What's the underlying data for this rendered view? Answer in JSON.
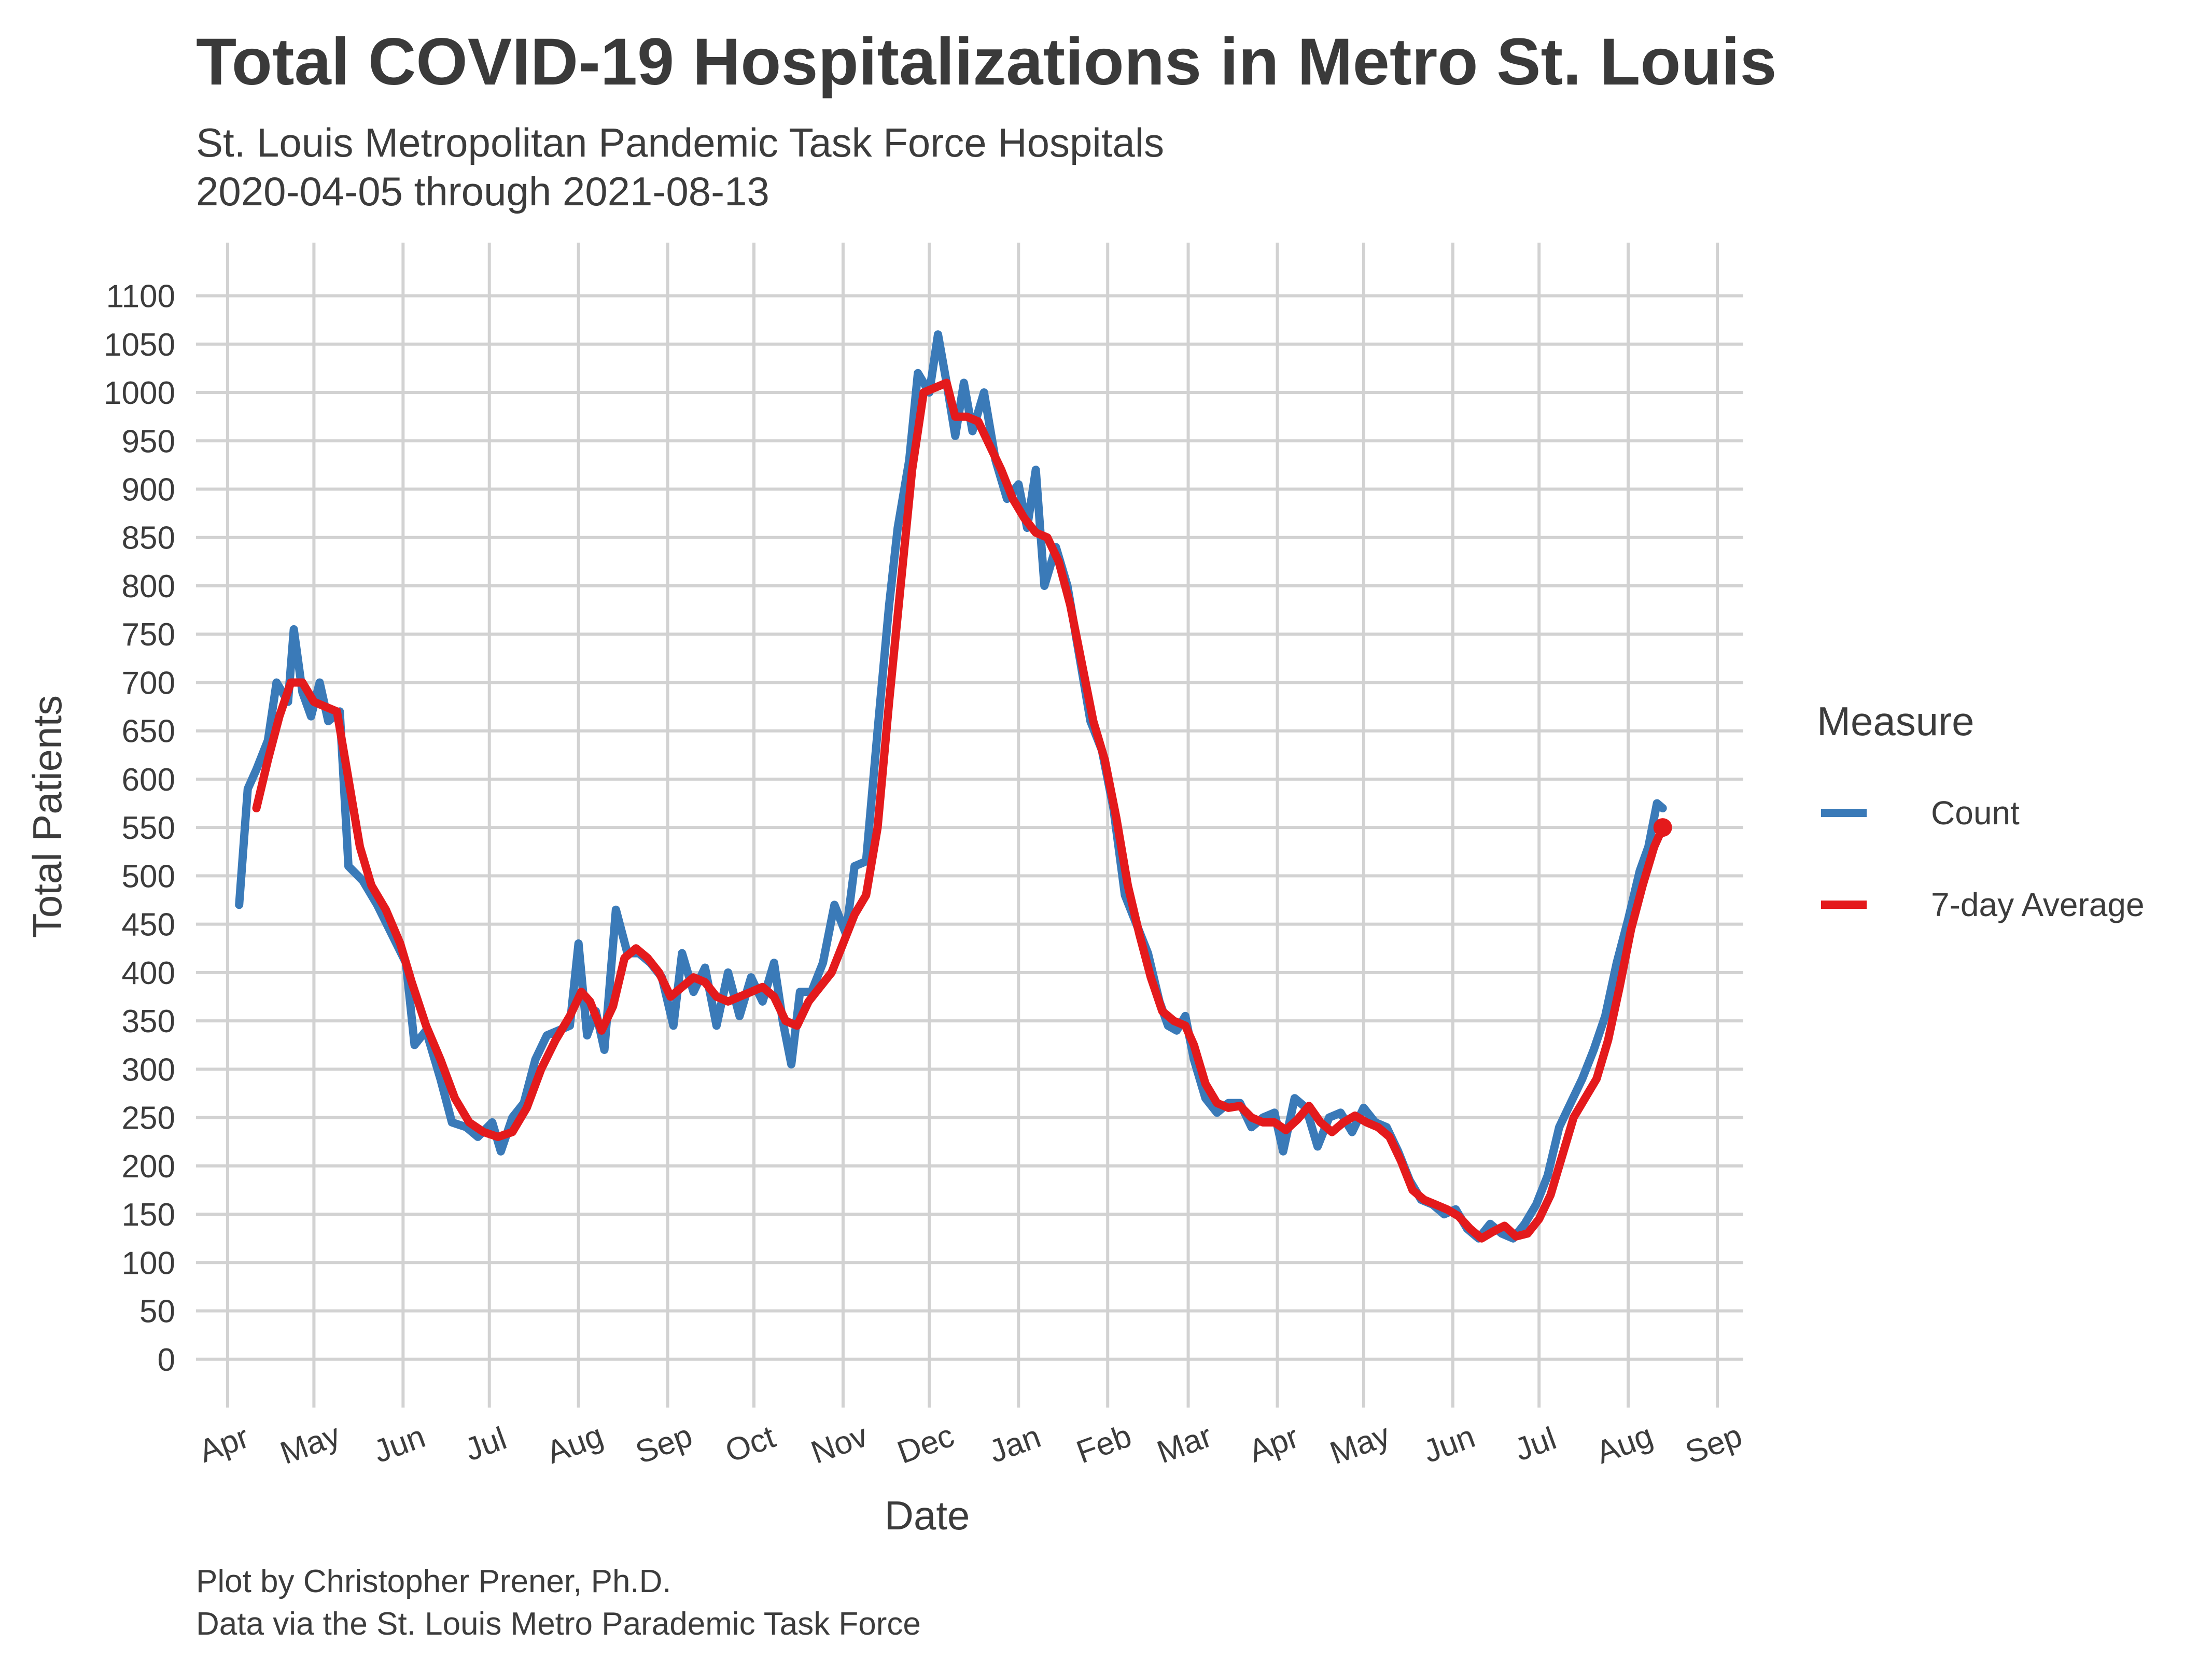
{
  "title": "Total COVID-19 Hospitalizations in Metro St. Louis",
  "subtitle": {
    "line1": "St. Louis Metropolitan Pandemic Task Force Hospitals",
    "line2": "2020-04-05 through 2021-08-13"
  },
  "caption": {
    "line1": "Plot by Christopher Prener, Ph.D.",
    "line2": "Data via the St. Louis Metro Parademic Task Force"
  },
  "colors": {
    "count": "#3a7ab8",
    "average": "#e41a1c",
    "grid": "#d2d2d2",
    "text": "#3c3c3c"
  },
  "chart_data": {
    "type": "line",
    "xlabel": "Date",
    "ylabel": "Total Patients",
    "xlim": [
      "2020-03-21",
      "2021-09-10"
    ],
    "ylim": [
      -50,
      1155
    ],
    "x_ticks": [
      {
        "date": "2020-04-01",
        "label": "Apr"
      },
      {
        "date": "2020-05-01",
        "label": "May"
      },
      {
        "date": "2020-06-01",
        "label": "Jun"
      },
      {
        "date": "2020-07-01",
        "label": "Jul"
      },
      {
        "date": "2020-08-01",
        "label": "Aug"
      },
      {
        "date": "2020-09-01",
        "label": "Sep"
      },
      {
        "date": "2020-10-01",
        "label": "Oct"
      },
      {
        "date": "2020-11-01",
        "label": "Nov"
      },
      {
        "date": "2020-12-01",
        "label": "Dec"
      },
      {
        "date": "2021-01-01",
        "label": "Jan"
      },
      {
        "date": "2021-02-01",
        "label": "Feb"
      },
      {
        "date": "2021-03-01",
        "label": "Mar"
      },
      {
        "date": "2021-04-01",
        "label": "Apr"
      },
      {
        "date": "2021-05-01",
        "label": "May"
      },
      {
        "date": "2021-06-01",
        "label": "Jun"
      },
      {
        "date": "2021-07-01",
        "label": "Jul"
      },
      {
        "date": "2021-08-01",
        "label": "Aug"
      },
      {
        "date": "2021-09-01",
        "label": "Sep"
      }
    ],
    "y_ticks": [
      0,
      50,
      100,
      150,
      200,
      250,
      300,
      350,
      400,
      450,
      500,
      550,
      600,
      650,
      700,
      750,
      800,
      850,
      900,
      950,
      1000,
      1050,
      1100
    ],
    "grid": true,
    "legend": {
      "title": "Measure",
      "position": "right"
    },
    "series": [
      {
        "name": "Count",
        "color": "#3a7ab8",
        "points": [
          [
            "2020-04-05",
            470
          ],
          [
            "2020-04-08",
            590
          ],
          [
            "2020-04-11",
            610
          ],
          [
            "2020-04-15",
            640
          ],
          [
            "2020-04-18",
            700
          ],
          [
            "2020-04-22",
            680
          ],
          [
            "2020-04-24",
            755
          ],
          [
            "2020-04-27",
            690
          ],
          [
            "2020-04-30",
            665
          ],
          [
            "2020-05-03",
            700
          ],
          [
            "2020-05-06",
            660
          ],
          [
            "2020-05-10",
            670
          ],
          [
            "2020-05-13",
            510
          ],
          [
            "2020-05-18",
            495
          ],
          [
            "2020-05-23",
            470
          ],
          [
            "2020-05-28",
            440
          ],
          [
            "2020-06-02",
            410
          ],
          [
            "2020-06-05",
            325
          ],
          [
            "2020-06-09",
            340
          ],
          [
            "2020-06-14",
            290
          ],
          [
            "2020-06-18",
            245
          ],
          [
            "2020-06-23",
            240
          ],
          [
            "2020-06-27",
            230
          ],
          [
            "2020-07-02",
            245
          ],
          [
            "2020-07-05",
            215
          ],
          [
            "2020-07-09",
            250
          ],
          [
            "2020-07-13",
            265
          ],
          [
            "2020-07-17",
            310
          ],
          [
            "2020-07-21",
            335
          ],
          [
            "2020-07-25",
            340
          ],
          [
            "2020-07-29",
            345
          ],
          [
            "2020-08-01",
            430
          ],
          [
            "2020-08-04",
            335
          ],
          [
            "2020-08-07",
            360
          ],
          [
            "2020-08-10",
            320
          ],
          [
            "2020-08-14",
            465
          ],
          [
            "2020-08-18",
            420
          ],
          [
            "2020-08-22",
            420
          ],
          [
            "2020-08-26",
            410
          ],
          [
            "2020-08-30",
            395
          ],
          [
            "2020-09-03",
            345
          ],
          [
            "2020-09-06",
            420
          ],
          [
            "2020-09-10",
            380
          ],
          [
            "2020-09-14",
            405
          ],
          [
            "2020-09-18",
            345
          ],
          [
            "2020-09-22",
            400
          ],
          [
            "2020-09-26",
            355
          ],
          [
            "2020-09-30",
            395
          ],
          [
            "2020-10-04",
            370
          ],
          [
            "2020-10-08",
            410
          ],
          [
            "2020-10-11",
            350
          ],
          [
            "2020-10-14",
            305
          ],
          [
            "2020-10-17",
            380
          ],
          [
            "2020-10-21",
            380
          ],
          [
            "2020-10-25",
            410
          ],
          [
            "2020-10-29",
            470
          ],
          [
            "2020-11-02",
            440
          ],
          [
            "2020-11-05",
            510
          ],
          [
            "2020-11-09",
            515
          ],
          [
            "2020-11-13",
            650
          ],
          [
            "2020-11-17",
            780
          ],
          [
            "2020-11-20",
            860
          ],
          [
            "2020-11-24",
            930
          ],
          [
            "2020-11-27",
            1020
          ],
          [
            "2020-12-01",
            1000
          ],
          [
            "2020-12-04",
            1060
          ],
          [
            "2020-12-07",
            1010
          ],
          [
            "2020-12-10",
            955
          ],
          [
            "2020-12-13",
            1010
          ],
          [
            "2020-12-16",
            960
          ],
          [
            "2020-12-20",
            1000
          ],
          [
            "2020-12-24",
            930
          ],
          [
            "2020-12-28",
            890
          ],
          [
            "2021-01-01",
            905
          ],
          [
            "2021-01-04",
            860
          ],
          [
            "2021-01-07",
            920
          ],
          [
            "2021-01-10",
            800
          ],
          [
            "2021-01-14",
            840
          ],
          [
            "2021-01-18",
            800
          ],
          [
            "2021-01-22",
            730
          ],
          [
            "2021-01-26",
            660
          ],
          [
            "2021-01-30",
            630
          ],
          [
            "2021-02-03",
            570
          ],
          [
            "2021-02-07",
            480
          ],
          [
            "2021-02-11",
            450
          ],
          [
            "2021-02-15",
            420
          ],
          [
            "2021-02-19",
            370
          ],
          [
            "2021-02-22",
            345
          ],
          [
            "2021-02-25",
            340
          ],
          [
            "2021-02-28",
            355
          ],
          [
            "2021-03-03",
            310
          ],
          [
            "2021-03-07",
            270
          ],
          [
            "2021-03-11",
            255
          ],
          [
            "2021-03-15",
            265
          ],
          [
            "2021-03-19",
            265
          ],
          [
            "2021-03-23",
            240
          ],
          [
            "2021-03-27",
            250
          ],
          [
            "2021-03-31",
            255
          ],
          [
            "2021-04-03",
            215
          ],
          [
            "2021-04-07",
            270
          ],
          [
            "2021-04-11",
            260
          ],
          [
            "2021-04-15",
            220
          ],
          [
            "2021-04-19",
            250
          ],
          [
            "2021-04-23",
            255
          ],
          [
            "2021-04-27",
            235
          ],
          [
            "2021-05-01",
            260
          ],
          [
            "2021-05-05",
            245
          ],
          [
            "2021-05-09",
            240
          ],
          [
            "2021-05-13",
            215
          ],
          [
            "2021-05-17",
            185
          ],
          [
            "2021-05-21",
            165
          ],
          [
            "2021-05-25",
            160
          ],
          [
            "2021-05-29",
            150
          ],
          [
            "2021-06-02",
            155
          ],
          [
            "2021-06-06",
            135
          ],
          [
            "2021-06-10",
            125
          ],
          [
            "2021-06-14",
            140
          ],
          [
            "2021-06-18",
            130
          ],
          [
            "2021-06-22",
            125
          ],
          [
            "2021-06-26",
            140
          ],
          [
            "2021-06-30",
            160
          ],
          [
            "2021-07-04",
            190
          ],
          [
            "2021-07-08",
            240
          ],
          [
            "2021-07-12",
            265
          ],
          [
            "2021-07-16",
            290
          ],
          [
            "2021-07-20",
            320
          ],
          [
            "2021-07-24",
            355
          ],
          [
            "2021-07-28",
            410
          ],
          [
            "2021-08-01",
            455
          ],
          [
            "2021-08-05",
            505
          ],
          [
            "2021-08-08",
            530
          ],
          [
            "2021-08-11",
            575
          ],
          [
            "2021-08-13",
            570
          ]
        ]
      },
      {
        "name": "7-day Average",
        "color": "#e41a1c",
        "points": [
          [
            "2020-04-11",
            570
          ],
          [
            "2020-04-15",
            620
          ],
          [
            "2020-04-19",
            665
          ],
          [
            "2020-04-23",
            700
          ],
          [
            "2020-04-27",
            700
          ],
          [
            "2020-05-01",
            680
          ],
          [
            "2020-05-05",
            675
          ],
          [
            "2020-05-09",
            670
          ],
          [
            "2020-05-13",
            600
          ],
          [
            "2020-05-17",
            530
          ],
          [
            "2020-05-21",
            490
          ],
          [
            "2020-05-26",
            465
          ],
          [
            "2020-05-31",
            430
          ],
          [
            "2020-06-04",
            390
          ],
          [
            "2020-06-09",
            345
          ],
          [
            "2020-06-14",
            310
          ],
          [
            "2020-06-19",
            270
          ],
          [
            "2020-06-24",
            245
          ],
          [
            "2020-06-29",
            235
          ],
          [
            "2020-07-04",
            230
          ],
          [
            "2020-07-09",
            235
          ],
          [
            "2020-07-14",
            260
          ],
          [
            "2020-07-19",
            300
          ],
          [
            "2020-07-24",
            330
          ],
          [
            "2020-07-29",
            355
          ],
          [
            "2020-08-02",
            380
          ],
          [
            "2020-08-05",
            370
          ],
          [
            "2020-08-09",
            340
          ],
          [
            "2020-08-13",
            365
          ],
          [
            "2020-08-17",
            415
          ],
          [
            "2020-08-21",
            425
          ],
          [
            "2020-08-25",
            415
          ],
          [
            "2020-08-29",
            400
          ],
          [
            "2020-09-02",
            375
          ],
          [
            "2020-09-06",
            385
          ],
          [
            "2020-09-10",
            395
          ],
          [
            "2020-09-14",
            390
          ],
          [
            "2020-09-18",
            375
          ],
          [
            "2020-09-22",
            370
          ],
          [
            "2020-09-26",
            375
          ],
          [
            "2020-09-30",
            380
          ],
          [
            "2020-10-04",
            385
          ],
          [
            "2020-10-08",
            375
          ],
          [
            "2020-10-12",
            350
          ],
          [
            "2020-10-16",
            345
          ],
          [
            "2020-10-20",
            370
          ],
          [
            "2020-10-24",
            385
          ],
          [
            "2020-10-28",
            400
          ],
          [
            "2020-11-01",
            430
          ],
          [
            "2020-11-05",
            460
          ],
          [
            "2020-11-09",
            480
          ],
          [
            "2020-11-13",
            550
          ],
          [
            "2020-11-17",
            680
          ],
          [
            "2020-11-21",
            800
          ],
          [
            "2020-11-25",
            920
          ],
          [
            "2020-11-29",
            1000
          ],
          [
            "2020-12-03",
            1005
          ],
          [
            "2020-12-07",
            1010
          ],
          [
            "2020-12-10",
            975
          ],
          [
            "2020-12-14",
            975
          ],
          [
            "2020-12-18",
            970
          ],
          [
            "2020-12-22",
            945
          ],
          [
            "2020-12-26",
            920
          ],
          [
            "2020-12-30",
            890
          ],
          [
            "2021-01-03",
            870
          ],
          [
            "2021-01-07",
            855
          ],
          [
            "2021-01-11",
            850
          ],
          [
            "2021-01-15",
            825
          ],
          [
            "2021-01-19",
            780
          ],
          [
            "2021-01-23",
            720
          ],
          [
            "2021-01-27",
            660
          ],
          [
            "2021-01-31",
            620
          ],
          [
            "2021-02-04",
            560
          ],
          [
            "2021-02-08",
            490
          ],
          [
            "2021-02-12",
            440
          ],
          [
            "2021-02-16",
            395
          ],
          [
            "2021-02-20",
            360
          ],
          [
            "2021-02-24",
            350
          ],
          [
            "2021-02-28",
            345
          ],
          [
            "2021-03-03",
            325
          ],
          [
            "2021-03-07",
            285
          ],
          [
            "2021-03-11",
            265
          ],
          [
            "2021-03-15",
            260
          ],
          [
            "2021-03-19",
            262
          ],
          [
            "2021-03-23",
            250
          ],
          [
            "2021-03-27",
            245
          ],
          [
            "2021-03-31",
            245
          ],
          [
            "2021-04-04",
            237
          ],
          [
            "2021-04-08",
            248
          ],
          [
            "2021-04-12",
            262
          ],
          [
            "2021-04-16",
            245
          ],
          [
            "2021-04-20",
            235
          ],
          [
            "2021-04-24",
            245
          ],
          [
            "2021-04-28",
            252
          ],
          [
            "2021-05-02",
            245
          ],
          [
            "2021-05-06",
            240
          ],
          [
            "2021-05-10",
            230
          ],
          [
            "2021-05-14",
            205
          ],
          [
            "2021-05-18",
            175
          ],
          [
            "2021-05-22",
            165
          ],
          [
            "2021-05-26",
            160
          ],
          [
            "2021-05-30",
            155
          ],
          [
            "2021-06-03",
            148
          ],
          [
            "2021-06-07",
            135
          ],
          [
            "2021-06-11",
            125
          ],
          [
            "2021-06-15",
            132
          ],
          [
            "2021-06-19",
            138
          ],
          [
            "2021-06-23",
            127
          ],
          [
            "2021-06-27",
            130
          ],
          [
            "2021-07-01",
            145
          ],
          [
            "2021-07-05",
            170
          ],
          [
            "2021-07-09",
            210
          ],
          [
            "2021-07-13",
            250
          ],
          [
            "2021-07-17",
            270
          ],
          [
            "2021-07-21",
            290
          ],
          [
            "2021-07-25",
            330
          ],
          [
            "2021-07-29",
            385
          ],
          [
            "2021-08-02",
            445
          ],
          [
            "2021-08-06",
            490
          ],
          [
            "2021-08-10",
            530
          ],
          [
            "2021-08-13",
            550
          ]
        ]
      }
    ]
  }
}
